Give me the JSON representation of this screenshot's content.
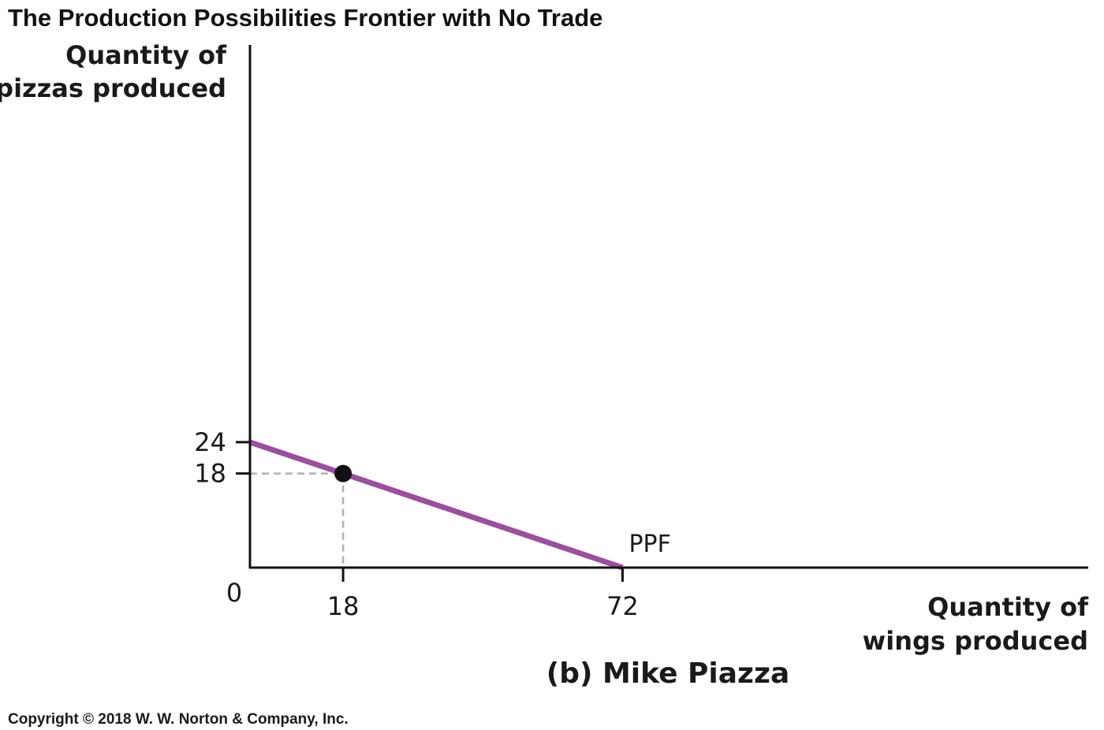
{
  "chart_data": {
    "type": "line",
    "title": "The Production Possibilities Frontier with No Trade",
    "subtitle": "(b) Mike Piazza",
    "ylabel_lines": [
      "Quantity of",
      "pizzas produced"
    ],
    "xlabel_lines": [
      "Quantity of",
      "wings produced"
    ],
    "origin_label": "0",
    "x_ticks": [
      18,
      72
    ],
    "y_ticks": [
      24,
      18
    ],
    "xlim": [
      0,
      162
    ],
    "ylim": [
      0,
      100
    ],
    "series": [
      {
        "name": "PPF",
        "color": "#9b4f9e",
        "points": [
          [
            0,
            24
          ],
          [
            72,
            0
          ]
        ]
      }
    ],
    "marker": {
      "x": 18,
      "y": 18,
      "color": "#111111"
    },
    "reference_lines": {
      "style": "dashed",
      "color": "#b0b0b0"
    },
    "grid": false
  },
  "copyright": "Copyright © 2018 W. W. Norton & Company, Inc."
}
